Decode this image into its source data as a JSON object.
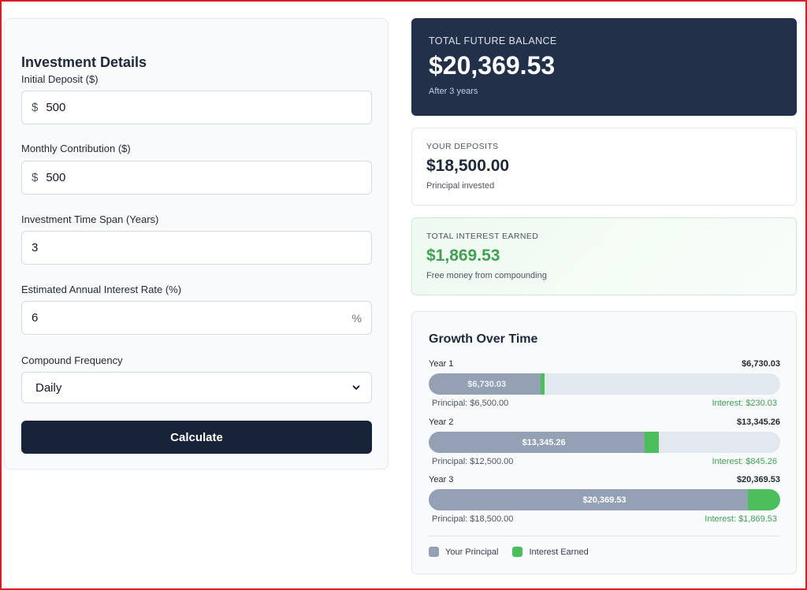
{
  "form": {
    "title": "Investment Details",
    "initial_deposit": {
      "label": "Initial Deposit ($)",
      "prefix": "$",
      "value": "500"
    },
    "monthly_contribution": {
      "label": "Monthly Contribution ($)",
      "prefix": "$",
      "value": "500"
    },
    "time_span": {
      "label": "Investment Time Span (Years)",
      "value": "3"
    },
    "interest_rate": {
      "label": "Estimated Annual Interest Rate (%)",
      "value": "6",
      "suffix": "%"
    },
    "compound_frequency": {
      "label": "Compound Frequency",
      "value": "Daily"
    },
    "calculate_label": "Calculate"
  },
  "summary": {
    "total_balance": {
      "caption": "TOTAL FUTURE BALANCE",
      "value": "$20,369.53",
      "sub": "After 3 years"
    },
    "deposits": {
      "caption": "YOUR DEPOSITS",
      "value": "$18,500.00",
      "sub": "Principal invested"
    },
    "interest": {
      "caption": "TOTAL INTEREST EARNED",
      "value": "$1,869.53",
      "sub": "Free money from compounding"
    }
  },
  "growth": {
    "title": "Growth Over Time",
    "years": [
      {
        "label": "Year 1",
        "total": "$6,730.03",
        "principal_text": "Principal: $6,500.00",
        "interest_text": "Interest: $230.03",
        "principal_value": 6500.0,
        "interest_value": 230.03
      },
      {
        "label": "Year 2",
        "total": "$13,345.26",
        "principal_text": "Principal: $12,500.00",
        "interest_text": "Interest: $845.26",
        "principal_value": 12500.0,
        "interest_value": 845.26
      },
      {
        "label": "Year 3",
        "total": "$20,369.53",
        "principal_text": "Principal: $18,500.00",
        "interest_text": "Interest: $1,869.53",
        "principal_value": 18500.0,
        "interest_value": 1869.53
      }
    ],
    "scale_max": 20369.53,
    "legend": {
      "principal": "Your Principal",
      "interest": "Interest Earned"
    }
  },
  "colors": {
    "principal": "#94a1b5",
    "interest": "#4cbf5c",
    "primary": "#172338",
    "balance_card": "#223149"
  }
}
